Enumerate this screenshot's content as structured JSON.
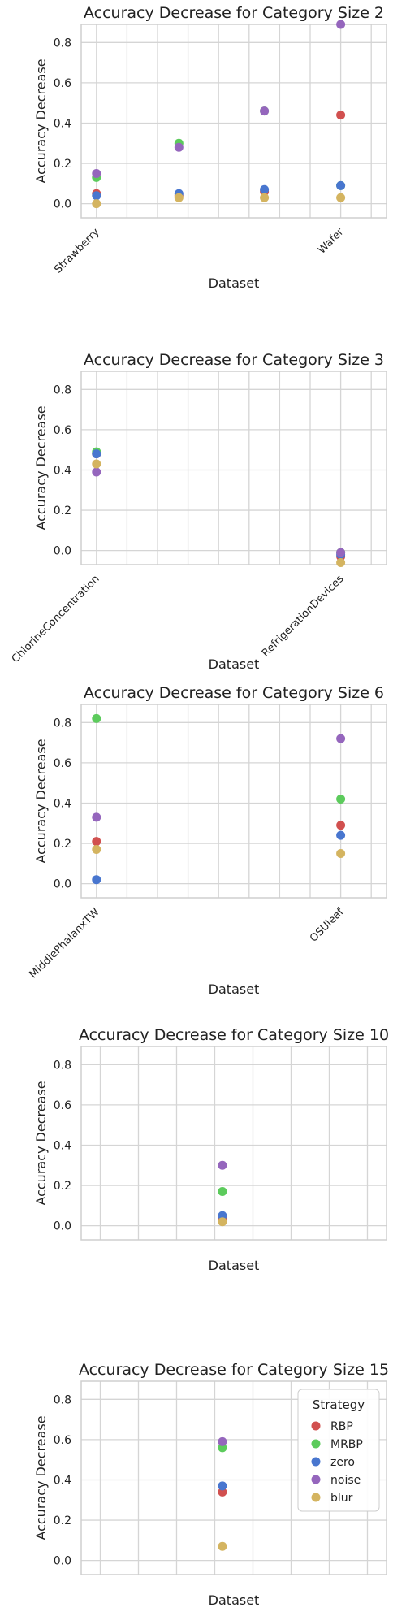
{
  "colors": {
    "RBP": "#d1504f",
    "MRBP": "#5ccb5c",
    "zero": "#4876cf",
    "noise": "#9566bd",
    "blur": "#d4b460",
    "grid": "#d5d5d5",
    "axes_edge": "#cfcfcf"
  },
  "legend": {
    "title": "Strategy",
    "entries": [
      "RBP",
      "MRBP",
      "zero",
      "noise",
      "blur"
    ],
    "placement": "top-right of last subplot"
  },
  "chart_data": [
    {
      "type": "scatter",
      "title": "Accuracy Decrease for Category Size 2",
      "xlabel": "Dataset",
      "ylabel": "Accuracy Decrease",
      "ylim": [
        -0.07,
        0.89
      ],
      "yticks": [
        "0.0",
        "0.2",
        "0.4",
        "0.6",
        "0.8"
      ],
      "ytick_values": [
        0.0,
        0.2,
        0.4,
        0.6,
        0.8
      ],
      "xlim": [
        -0.5,
        9.5
      ],
      "x_gridlines": [
        0,
        1,
        2,
        3,
        4,
        5,
        6,
        7,
        8,
        9
      ],
      "x_tick_labels": [
        {
          "x": 0,
          "label": "Strawberry"
        },
        {
          "x": 8,
          "label": "Wafer"
        }
      ],
      "points": [
        {
          "x": 0,
          "strategy": "RBP",
          "y": 0.05
        },
        {
          "x": 0,
          "strategy": "MRBP",
          "y": 0.13
        },
        {
          "x": 0,
          "strategy": "zero",
          "y": 0.04
        },
        {
          "x": 0,
          "strategy": "noise",
          "y": 0.15
        },
        {
          "x": 0,
          "strategy": "blur",
          "y": 0.0
        },
        {
          "x": 2.7,
          "strategy": "RBP",
          "y": 0.04
        },
        {
          "x": 2.7,
          "strategy": "MRBP",
          "y": 0.3
        },
        {
          "x": 2.7,
          "strategy": "zero",
          "y": 0.05
        },
        {
          "x": 2.7,
          "strategy": "noise",
          "y": 0.28
        },
        {
          "x": 2.7,
          "strategy": "blur",
          "y": 0.03
        },
        {
          "x": 5.5,
          "strategy": "RBP",
          "y": 0.06
        },
        {
          "x": 5.5,
          "strategy": "MRBP",
          "y": 0.46
        },
        {
          "x": 5.5,
          "strategy": "zero",
          "y": 0.07
        },
        {
          "x": 5.5,
          "strategy": "noise",
          "y": 0.46
        },
        {
          "x": 5.5,
          "strategy": "blur",
          "y": 0.03
        },
        {
          "x": 8,
          "strategy": "RBP",
          "y": 0.44
        },
        {
          "x": 8,
          "strategy": "MRBP",
          "y": 0.09
        },
        {
          "x": 8,
          "strategy": "zero",
          "y": 0.09
        },
        {
          "x": 8,
          "strategy": "noise",
          "y": 0.89
        },
        {
          "x": 8,
          "strategy": "blur",
          "y": 0.03
        }
      ]
    },
    {
      "type": "scatter",
      "title": "Accuracy Decrease for Category Size 3",
      "xlabel": "Dataset",
      "ylabel": "Accuracy Decrease",
      "ylim": [
        -0.07,
        0.89
      ],
      "yticks": [
        "0.0",
        "0.2",
        "0.4",
        "0.6",
        "0.8"
      ],
      "ytick_values": [
        0.0,
        0.2,
        0.4,
        0.6,
        0.8
      ],
      "xlim": [
        -0.5,
        9.5
      ],
      "x_gridlines": [
        0,
        1,
        2,
        3,
        4,
        5,
        6,
        7,
        8,
        9
      ],
      "x_tick_labels": [
        {
          "x": 0,
          "label": "ChlorineConcentration"
        },
        {
          "x": 8,
          "label": "RefrigerationDevices"
        }
      ],
      "points": [
        {
          "x": 0,
          "strategy": "RBP",
          "y": 0.48
        },
        {
          "x": 0,
          "strategy": "MRBP",
          "y": 0.49
        },
        {
          "x": 0,
          "strategy": "zero",
          "y": 0.48
        },
        {
          "x": 0,
          "strategy": "noise",
          "y": 0.39
        },
        {
          "x": 0,
          "strategy": "blur",
          "y": 0.43
        },
        {
          "x": 8,
          "strategy": "RBP",
          "y": -0.03
        },
        {
          "x": 8,
          "strategy": "MRBP",
          "y": -0.01
        },
        {
          "x": 8,
          "strategy": "zero",
          "y": -0.02
        },
        {
          "x": 8,
          "strategy": "noise",
          "y": -0.01
        },
        {
          "x": 8,
          "strategy": "blur",
          "y": -0.06
        }
      ]
    },
    {
      "type": "scatter",
      "title": "Accuracy Decrease for Category Size 6",
      "xlabel": "Dataset",
      "ylabel": "Accuracy Decrease",
      "ylim": [
        -0.07,
        0.89
      ],
      "yticks": [
        "0.0",
        "0.2",
        "0.4",
        "0.6",
        "0.8"
      ],
      "ytick_values": [
        0.0,
        0.2,
        0.4,
        0.6,
        0.8
      ],
      "xlim": [
        -0.5,
        9.5
      ],
      "x_gridlines": [
        0,
        1,
        2,
        3,
        4,
        5,
        6,
        7,
        8,
        9
      ],
      "x_tick_labels": [
        {
          "x": 0,
          "label": "MiddlePhalanxTW"
        },
        {
          "x": 8,
          "label": "OSUleaf"
        }
      ],
      "points": [
        {
          "x": 0,
          "strategy": "RBP",
          "y": 0.21
        },
        {
          "x": 0,
          "strategy": "MRBP",
          "y": 0.82
        },
        {
          "x": 0,
          "strategy": "zero",
          "y": 0.02
        },
        {
          "x": 0,
          "strategy": "noise",
          "y": 0.33
        },
        {
          "x": 0,
          "strategy": "blur",
          "y": 0.17
        },
        {
          "x": 8,
          "strategy": "RBP",
          "y": 0.29
        },
        {
          "x": 8,
          "strategy": "MRBP",
          "y": 0.42
        },
        {
          "x": 8,
          "strategy": "zero",
          "y": 0.24
        },
        {
          "x": 8,
          "strategy": "noise",
          "y": 0.72
        },
        {
          "x": 8,
          "strategy": "blur",
          "y": 0.15
        }
      ]
    },
    {
      "type": "scatter",
      "title": "Accuracy Decrease for Category Size 10",
      "xlabel": "Dataset",
      "ylabel": "Accuracy Decrease",
      "ylim": [
        -0.07,
        0.89
      ],
      "yticks": [
        "0.0",
        "0.2",
        "0.4",
        "0.6",
        "0.8"
      ],
      "ytick_values": [
        0.0,
        0.2,
        0.4,
        0.6,
        0.8
      ],
      "xlim": [
        -0.5,
        7.5
      ],
      "x_gridlines": [
        0,
        1,
        2,
        3,
        4,
        5,
        6,
        7
      ],
      "x_tick_labels": [],
      "points": [
        {
          "x": 3.2,
          "strategy": "RBP",
          "y": 0.04
        },
        {
          "x": 3.2,
          "strategy": "MRBP",
          "y": 0.17
        },
        {
          "x": 3.2,
          "strategy": "zero",
          "y": 0.05
        },
        {
          "x": 3.2,
          "strategy": "noise",
          "y": 0.3
        },
        {
          "x": 3.2,
          "strategy": "blur",
          "y": 0.02
        }
      ]
    },
    {
      "type": "scatter",
      "title": "Accuracy Decrease for Category Size 15",
      "xlabel": "Dataset",
      "ylabel": "Accuracy Decrease",
      "ylim": [
        -0.07,
        0.89
      ],
      "yticks": [
        "0.0",
        "0.2",
        "0.4",
        "0.6",
        "0.8"
      ],
      "ytick_values": [
        0.0,
        0.2,
        0.4,
        0.6,
        0.8
      ],
      "xlim": [
        -0.5,
        7.5
      ],
      "x_gridlines": [
        0,
        1,
        2,
        3,
        4,
        5,
        6,
        7
      ],
      "x_tick_labels": [],
      "points": [
        {
          "x": 3.2,
          "strategy": "RBP",
          "y": 0.34
        },
        {
          "x": 3.2,
          "strategy": "MRBP",
          "y": 0.56
        },
        {
          "x": 3.2,
          "strategy": "zero",
          "y": 0.37
        },
        {
          "x": 3.2,
          "strategy": "noise",
          "y": 0.59
        },
        {
          "x": 3.2,
          "strategy": "blur",
          "y": 0.07
        }
      ],
      "show_legend": true
    }
  ]
}
